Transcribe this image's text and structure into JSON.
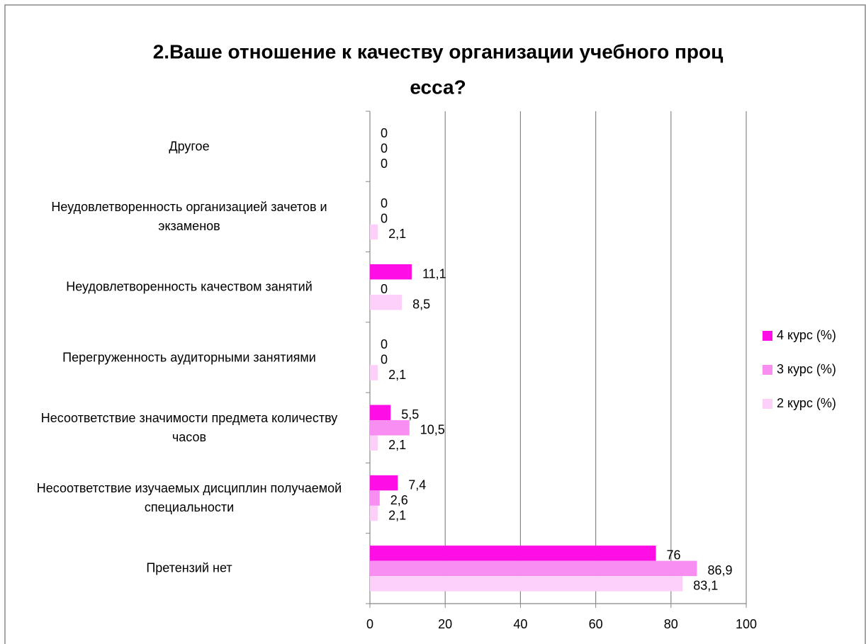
{
  "chart_data": {
    "type": "hbar",
    "title": [
      "2.Ваше отношение к качеству организации учебного проц",
      "есса?"
    ],
    "categories": [
      "Другое",
      "Неудовлетворенность организацией зачетов и экзаменов",
      "Неудовлетворенность качеством занятий",
      "Перегруженность аудиторными занятиями",
      "Несоответствие значимости предмета количеству часов",
      "Несоответствие изучаемых дисциплин получаемой специальности",
      "Претензий нет"
    ],
    "series": [
      {
        "name": "4 курс (%)",
        "color": "#ff0fe6",
        "values": [
          0,
          0,
          11.1,
          0,
          5.5,
          7.4,
          76
        ],
        "value_labels": [
          "0",
          "0",
          "11,1",
          "0",
          "5,5",
          "7,4",
          "76"
        ]
      },
      {
        "name": "3 курс (%)",
        "color": "#f98ef2",
        "values": [
          0,
          0,
          0,
          0,
          10.5,
          2.6,
          86.9
        ],
        "value_labels": [
          "0",
          "0",
          "0",
          "0",
          "10,5",
          "2,6",
          "86,9"
        ]
      },
      {
        "name": "2 курс (%)",
        "color": "#fdd0fa",
        "values": [
          0,
          2.1,
          8.5,
          2.1,
          2.1,
          2.1,
          83.1
        ],
        "value_labels": [
          "0",
          "2,1",
          "8,5",
          "2,1",
          "2,1",
          "2,1",
          "83,1"
        ]
      }
    ],
    "xlim": [
      0,
      100
    ],
    "xticks": [
      0,
      20,
      40,
      60,
      80,
      100
    ],
    "grid": true,
    "legend": "right"
  }
}
